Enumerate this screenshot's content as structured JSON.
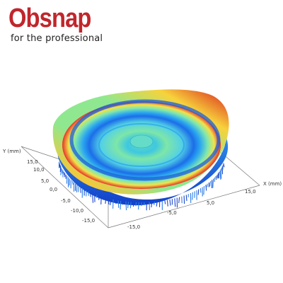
{
  "brand": {
    "name": "Obsnap",
    "tagline": "for the professional",
    "color": "#c0262c"
  },
  "chart_data": {
    "type": "surface-3d",
    "title": "",
    "xlabel": "X (mm)",
    "ylabel": "Y (mm)",
    "x_ticks": [
      "-15,0",
      "-5,0",
      "5,0",
      "15,0"
    ],
    "y_ticks": [
      "15,0",
      "10,0",
      "5,0",
      "0,0",
      "-5,0",
      "-10,0",
      "-15,0"
    ],
    "xlim": [
      -20,
      20
    ],
    "ylim": [
      -20,
      20
    ],
    "colormap": "jet",
    "grid": false,
    "legend": "none"
  }
}
